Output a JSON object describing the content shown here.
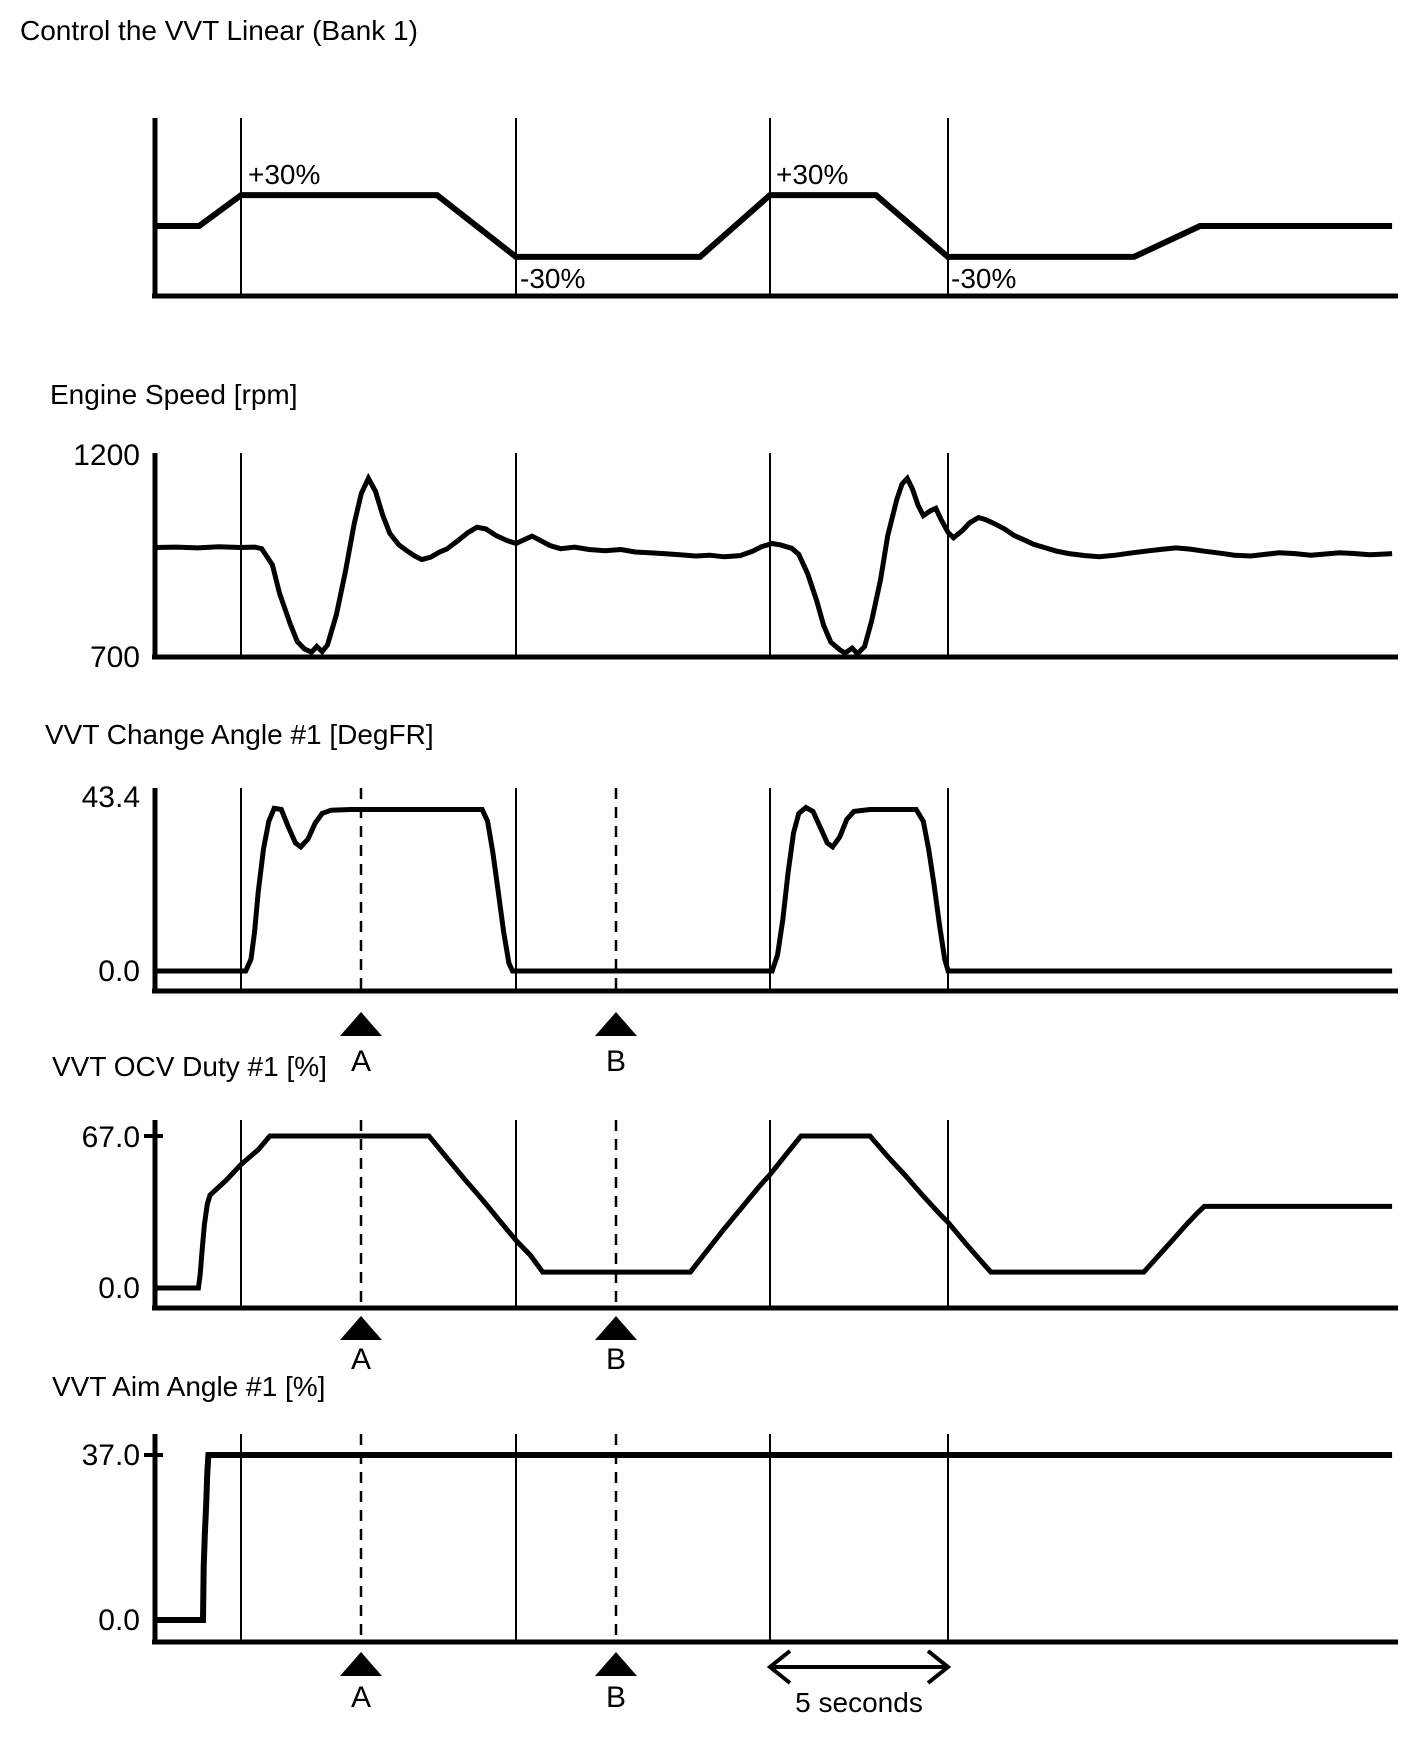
{
  "page": {
    "background": "#ffffff",
    "ink": "#000000"
  },
  "markers": {
    "a": {
      "label": "A",
      "t": 5.79
    },
    "b": {
      "label": "B",
      "t": 12.96
    }
  },
  "time_scale": {
    "label": "5 seconds",
    "seconds": 5,
    "from_t": 17.29,
    "to_t": 22.29
  },
  "chart_data": [
    {
      "type": "line",
      "title": "Control the VVT Linear (Bank 1)",
      "unit": "%",
      "ylim": [
        -50,
        50
      ],
      "grid": "event-lines",
      "annotations": [
        "+30%",
        "-30%",
        "+30%",
        "-30%"
      ],
      "series": [
        [
          0,
          0
        ],
        [
          1.24,
          0
        ],
        [
          2.42,
          30
        ],
        [
          7.93,
          30
        ],
        [
          10.15,
          -30
        ],
        [
          15.32,
          -30
        ],
        [
          17.29,
          30
        ],
        [
          20.27,
          30
        ],
        [
          22.29,
          -30
        ],
        [
          27.52,
          -30
        ],
        [
          29.38,
          0
        ],
        [
          34.78,
          0
        ]
      ]
    },
    {
      "type": "line",
      "title": "Engine Speed [rpm]",
      "unit": "rpm",
      "y_ticks": [
        "1200",
        "700"
      ],
      "ylim": [
        700,
        1200
      ],
      "grid": "event-lines",
      "series": [
        [
          0,
          971
        ],
        [
          0.6,
          972
        ],
        [
          1.2,
          970
        ],
        [
          1.8,
          973
        ],
        [
          2.4,
          971
        ],
        [
          2.8,
          972
        ],
        [
          3.0,
          968
        ],
        [
          3.3,
          928
        ],
        [
          3.5,
          858
        ],
        [
          3.8,
          782
        ],
        [
          4.0,
          738
        ],
        [
          4.2,
          720
        ],
        [
          4.4,
          712
        ],
        [
          4.55,
          726
        ],
        [
          4.7,
          713
        ],
        [
          4.85,
          730
        ],
        [
          5.1,
          805
        ],
        [
          5.35,
          910
        ],
        [
          5.6,
          1030
        ],
        [
          5.8,
          1105
        ],
        [
          6.0,
          1142
        ],
        [
          6.2,
          1110
        ],
        [
          6.4,
          1052
        ],
        [
          6.6,
          1006
        ],
        [
          6.85,
          978
        ],
        [
          7.1,
          962
        ],
        [
          7.3,
          950
        ],
        [
          7.5,
          941
        ],
        [
          7.75,
          947
        ],
        [
          8.0,
          960
        ],
        [
          8.2,
          967
        ],
        [
          8.5,
          987
        ],
        [
          8.8,
          1008
        ],
        [
          9.05,
          1021
        ],
        [
          9.3,
          1017
        ],
        [
          9.6,
          1000
        ],
        [
          9.9,
          988
        ],
        [
          10.15,
          981
        ],
        [
          10.4,
          991
        ],
        [
          10.6,
          999
        ],
        [
          10.8,
          990
        ],
        [
          11.1,
          976
        ],
        [
          11.4,
          968
        ],
        [
          11.8,
          972
        ],
        [
          12.2,
          966
        ],
        [
          12.65,
          963
        ],
        [
          13.1,
          966
        ],
        [
          13.5,
          960
        ],
        [
          13.9,
          958
        ],
        [
          14.3,
          956
        ],
        [
          14.75,
          953
        ],
        [
          15.2,
          950
        ],
        [
          15.6,
          952
        ],
        [
          16.0,
          948
        ],
        [
          16.45,
          951
        ],
        [
          16.8,
          962
        ],
        [
          17.05,
          973
        ],
        [
          17.35,
          981
        ],
        [
          17.6,
          977
        ],
        [
          17.9,
          969
        ],
        [
          18.1,
          954
        ],
        [
          18.35,
          906
        ],
        [
          18.6,
          840
        ],
        [
          18.8,
          778
        ],
        [
          19.0,
          737
        ],
        [
          19.25,
          718
        ],
        [
          19.4,
          710
        ],
        [
          19.6,
          722
        ],
        [
          19.75,
          708
        ],
        [
          19.95,
          726
        ],
        [
          20.15,
          790
        ],
        [
          20.4,
          892
        ],
        [
          20.6,
          1000
        ],
        [
          20.85,
          1088
        ],
        [
          21.0,
          1128
        ],
        [
          21.15,
          1142
        ],
        [
          21.3,
          1115
        ],
        [
          21.45,
          1076
        ],
        [
          21.6,
          1050
        ],
        [
          21.8,
          1062
        ],
        [
          21.95,
          1068
        ],
        [
          22.1,
          1040
        ],
        [
          22.3,
          1008
        ],
        [
          22.45,
          995
        ],
        [
          22.7,
          1013
        ],
        [
          22.9,
          1032
        ],
        [
          23.15,
          1045
        ],
        [
          23.35,
          1040
        ],
        [
          23.6,
          1030
        ],
        [
          23.9,
          1016
        ],
        [
          24.15,
          1001
        ],
        [
          24.45,
          989
        ],
        [
          24.7,
          979
        ],
        [
          25.0,
          971
        ],
        [
          25.35,
          962
        ],
        [
          25.7,
          956
        ],
        [
          26.15,
          951
        ],
        [
          26.55,
          948
        ],
        [
          27.0,
          952
        ],
        [
          27.4,
          957
        ],
        [
          27.85,
          962
        ],
        [
          28.25,
          966
        ],
        [
          28.7,
          970
        ],
        [
          29.1,
          967
        ],
        [
          29.5,
          962
        ],
        [
          29.95,
          957
        ],
        [
          30.35,
          952
        ],
        [
          30.8,
          950
        ],
        [
          31.2,
          954
        ],
        [
          31.6,
          958
        ],
        [
          32.05,
          956
        ],
        [
          32.5,
          952
        ],
        [
          32.9,
          955
        ],
        [
          33.3,
          958
        ],
        [
          33.75,
          956
        ],
        [
          34.15,
          953
        ],
        [
          34.6,
          955
        ],
        [
          34.78,
          956
        ]
      ]
    },
    {
      "type": "line",
      "title": "VVT Change Angle #1 [DegFR]",
      "unit": "DegFR",
      "y_ticks": [
        "43.4",
        "0.0"
      ],
      "ylim": [
        0,
        43.4
      ],
      "grid": "event-lines",
      "series": [
        [
          0,
          0
        ],
        [
          2.55,
          0
        ],
        [
          2.7,
          3
        ],
        [
          2.8,
          10
        ],
        [
          2.9,
          20
        ],
        [
          3.05,
          31
        ],
        [
          3.2,
          38
        ],
        [
          3.35,
          41.3
        ],
        [
          3.55,
          41
        ],
        [
          3.75,
          36.5
        ],
        [
          3.95,
          32.5
        ],
        [
          4.1,
          31.5
        ],
        [
          4.3,
          33.5
        ],
        [
          4.5,
          37.5
        ],
        [
          4.7,
          40
        ],
        [
          4.95,
          40.8
        ],
        [
          5.5,
          41
        ],
        [
          7,
          41
        ],
        [
          9.2,
          41
        ],
        [
          9.35,
          38
        ],
        [
          9.5,
          30
        ],
        [
          9.65,
          20
        ],
        [
          9.8,
          10
        ],
        [
          9.95,
          2
        ],
        [
          10.05,
          0
        ],
        [
          13,
          0
        ],
        [
          17.35,
          0
        ],
        [
          17.5,
          4
        ],
        [
          17.65,
          13
        ],
        [
          17.8,
          25
        ],
        [
          17.95,
          35
        ],
        [
          18.1,
          40
        ],
        [
          18.3,
          41.5
        ],
        [
          18.5,
          40.5
        ],
        [
          18.7,
          36.5
        ],
        [
          18.9,
          32.5
        ],
        [
          19.05,
          31.5
        ],
        [
          19.25,
          34
        ],
        [
          19.45,
          38.5
        ],
        [
          19.65,
          40.5
        ],
        [
          20.1,
          41
        ],
        [
          21.4,
          41
        ],
        [
          21.6,
          38
        ],
        [
          21.75,
          31
        ],
        [
          21.9,
          22
        ],
        [
          22.05,
          12
        ],
        [
          22.2,
          3
        ],
        [
          22.3,
          0
        ],
        [
          28,
          0
        ],
        [
          34.78,
          0
        ]
      ]
    },
    {
      "type": "line",
      "title": "VVT OCV Duty #1 [%]",
      "unit": "%",
      "y_ticks": [
        "67.0",
        "0.0"
      ],
      "ylim": [
        0,
        67
      ],
      "grid": "event-lines",
      "series": [
        [
          0,
          0
        ],
        [
          1.22,
          0
        ],
        [
          1.27,
          6
        ],
        [
          1.32,
          16
        ],
        [
          1.39,
          28
        ],
        [
          1.47,
          37
        ],
        [
          1.55,
          41
        ],
        [
          2.0,
          47.5
        ],
        [
          2.42,
          54.5
        ],
        [
          2.9,
          61
        ],
        [
          3.23,
          67
        ],
        [
          7.7,
          67
        ],
        [
          8.2,
          57.5
        ],
        [
          8.7,
          48
        ],
        [
          9.2,
          39
        ],
        [
          9.7,
          29.5
        ],
        [
          10.15,
          21
        ],
        [
          10.55,
          14.5
        ],
        [
          10.9,
          7
        ],
        [
          15.05,
          7
        ],
        [
          15.5,
          16
        ],
        [
          16.0,
          26
        ],
        [
          16.5,
          35.5
        ],
        [
          17.0,
          45
        ],
        [
          17.29,
          50
        ],
        [
          17.8,
          60
        ],
        [
          18.16,
          67
        ],
        [
          20.1,
          67
        ],
        [
          20.6,
          58
        ],
        [
          21.1,
          49.5
        ],
        [
          21.6,
          40.5
        ],
        [
          22.1,
          32
        ],
        [
          22.29,
          29
        ],
        [
          22.8,
          19.5
        ],
        [
          23.3,
          10.5
        ],
        [
          23.5,
          7
        ],
        [
          27.8,
          7
        ],
        [
          28.2,
          14
        ],
        [
          28.6,
          21
        ],
        [
          29.0,
          28
        ],
        [
          29.3,
          33
        ],
        [
          29.5,
          36
        ],
        [
          34.78,
          36
        ]
      ]
    },
    {
      "type": "line",
      "title": "VVT Aim Angle #1 [%]",
      "unit": "%",
      "y_ticks": [
        "37.0",
        "0.0"
      ],
      "ylim": [
        0,
        37
      ],
      "grid": "event-lines",
      "series": [
        [
          0,
          0
        ],
        [
          1.35,
          0
        ],
        [
          1.37,
          12
        ],
        [
          1.4,
          19
        ],
        [
          1.44,
          26
        ],
        [
          1.47,
          33
        ],
        [
          1.5,
          37
        ],
        [
          34.78,
          37
        ]
      ]
    }
  ]
}
